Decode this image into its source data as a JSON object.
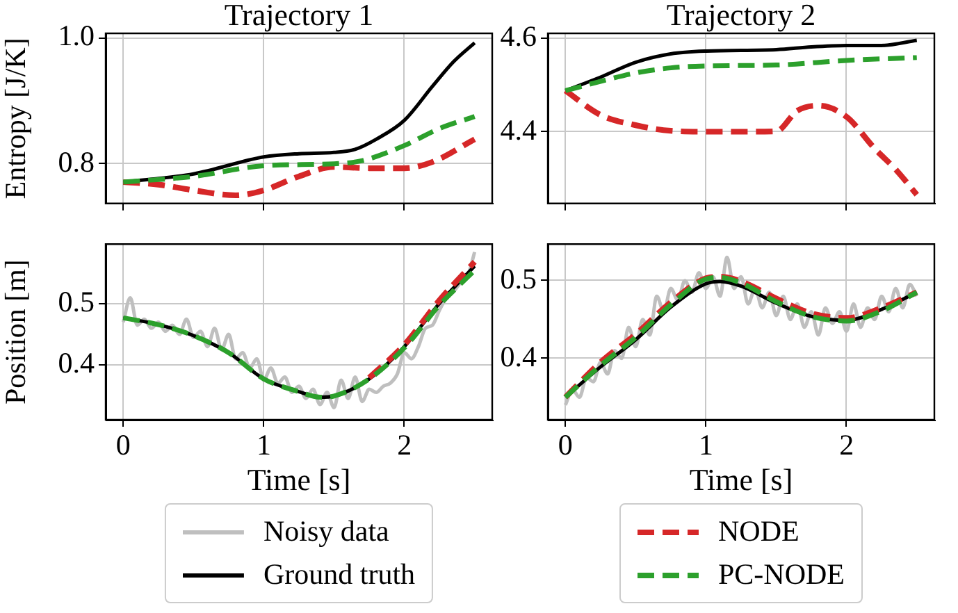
{
  "chart_data": [
    {
      "type": "line",
      "title": "Trajectory 1",
      "ylabel": "Entropy [J/K]",
      "xlim": [
        -0.125,
        2.625
      ],
      "ylim": [
        0.737,
        1.007
      ],
      "xticks": [
        0,
        1,
        2
      ],
      "yticks": [
        0.8,
        {
          "value": 1,
          "label": "1.0"
        }
      ],
      "grid": true,
      "tick_labels": "y",
      "marker": "none",
      "series": [
        {
          "color": "#000000",
          "line_style": "solid",
          "x": [
            0,
            0.5,
            1,
            1.25,
            1.5,
            1.65,
            1.8,
            2,
            2.2,
            2.35,
            2.5
          ],
          "values": [
            0.771,
            0.784,
            0.811,
            0.816,
            0.818,
            0.823,
            0.839,
            0.869,
            0.923,
            0.962,
            0.992
          ]
        },
        {
          "color": "#d62728",
          "line_style": "dashed",
          "x": [
            0,
            0.25,
            0.5,
            0.8,
            1,
            1.25,
            1.5,
            1.75,
            2,
            2.2,
            2.5
          ],
          "values": [
            0.771,
            0.767,
            0.758,
            0.75,
            0.758,
            0.78,
            0.795,
            0.793,
            0.793,
            0.803,
            0.839
          ]
        },
        {
          "color": "#2ca02c",
          "line_style": "dashed",
          "x": [
            0,
            0.5,
            1,
            1.5,
            1.7,
            2,
            2.25,
            2.5
          ],
          "values": [
            0.771,
            0.78,
            0.797,
            0.8,
            0.805,
            0.829,
            0.856,
            0.875
          ]
        }
      ]
    },
    {
      "type": "line",
      "title": "Trajectory 2",
      "xlim": [
        -0.125,
        2.625
      ],
      "ylim": [
        4.246,
        4.611
      ],
      "xticks": [
        0,
        1,
        2
      ],
      "yticks": [
        4.4,
        4.6
      ],
      "grid": true,
      "tick_labels": "y",
      "marker": "none",
      "series": [
        {
          "color": "#000000",
          "line_style": "solid",
          "x": [
            0,
            0.25,
            0.5,
            0.75,
            1,
            1.5,
            1.75,
            2,
            2.25,
            2.5
          ],
          "values": [
            4.488,
            4.517,
            4.549,
            4.567,
            4.573,
            4.576,
            4.582,
            4.585,
            4.585,
            4.596
          ]
        },
        {
          "color": "#d62728",
          "line_style": "dashed",
          "x": [
            0,
            0.25,
            0.5,
            0.75,
            1,
            1.25,
            1.5,
            1.65,
            1.8,
            2,
            2.2,
            2.35,
            2.5
          ],
          "values": [
            4.488,
            4.436,
            4.414,
            4.402,
            4.4,
            4.4,
            4.401,
            4.445,
            4.456,
            4.432,
            4.364,
            4.319,
            4.265
          ]
        },
        {
          "color": "#2ca02c",
          "line_style": "dashed",
          "x": [
            0,
            0.25,
            0.5,
            0.75,
            1,
            1.5,
            2,
            2.5
          ],
          "values": [
            4.488,
            4.508,
            4.526,
            4.537,
            4.541,
            4.543,
            4.553,
            4.559
          ]
        }
      ]
    },
    {
      "type": "line",
      "xlabel": "Time [s]",
      "ylabel": "Position [m]",
      "xlim": [
        -0.125,
        2.625
      ],
      "ylim": [
        0.31,
        0.598
      ],
      "xticks": [
        0,
        1,
        2
      ],
      "yticks": [
        0.4,
        0.5
      ],
      "grid": true,
      "legend": "bottom",
      "marker": "none",
      "series": [
        {
          "name": "Noisy data",
          "color": "#bfbfbf",
          "line_style": "solid",
          "x": [
            0,
            0.05,
            0.1,
            0.15,
            0.2,
            0.25,
            0.3,
            0.35,
            0.4,
            0.45,
            0.5,
            0.55,
            0.6,
            0.65,
            0.7,
            0.75,
            0.8,
            0.85,
            0.9,
            0.95,
            1,
            1.05,
            1.1,
            1.15,
            1.2,
            1.25,
            1.3,
            1.35,
            1.4,
            1.45,
            1.5,
            1.55,
            1.6,
            1.65,
            1.7,
            1.75,
            1.8,
            1.85,
            1.9,
            1.95,
            2,
            2.05,
            2.1,
            2.15,
            2.2,
            2.25,
            2.3,
            2.35,
            2.4,
            2.45,
            2.5
          ],
          "values": [
            0.47,
            0.51,
            0.465,
            0.475,
            0.46,
            0.47,
            0.455,
            0.465,
            0.45,
            0.475,
            0.445,
            0.455,
            0.43,
            0.46,
            0.425,
            0.45,
            0.41,
            0.42,
            0.395,
            0.41,
            0.375,
            0.395,
            0.37,
            0.38,
            0.355,
            0.365,
            0.345,
            0.36,
            0.335,
            0.355,
            0.33,
            0.375,
            0.345,
            0.38,
            0.34,
            0.36,
            0.355,
            0.365,
            0.37,
            0.385,
            0.42,
            0.41,
            0.43,
            0.46,
            0.465,
            0.49,
            0.51,
            0.52,
            0.535,
            0.545,
            0.585
          ]
        },
        {
          "name": "Ground truth",
          "color": "#000000",
          "line_style": "solid",
          "x": [
            0,
            0.25,
            0.5,
            0.75,
            1,
            1.25,
            1.4,
            1.5,
            1.75,
            2,
            2.25,
            2.5
          ],
          "values": [
            0.477,
            0.466,
            0.448,
            0.42,
            0.377,
            0.356,
            0.347,
            0.349,
            0.377,
            0.43,
            0.501,
            0.562
          ]
        },
        {
          "color": "#d62728",
          "line_style": "dashed",
          "x": [
            1.75,
            2,
            2.25,
            2.5
          ],
          "values": [
            0.379,
            0.433,
            0.506,
            0.569
          ]
        },
        {
          "color": "#2ca02c",
          "line_style": "dashed",
          "x": [
            0,
            0.25,
            0.5,
            0.75,
            1,
            1.25,
            1.4,
            1.5,
            1.75,
            2,
            2.25,
            2.5
          ],
          "values": [
            0.477,
            0.466,
            0.448,
            0.42,
            0.377,
            0.356,
            0.347,
            0.349,
            0.377,
            0.428,
            0.498,
            0.555
          ]
        }
      ]
    },
    {
      "type": "line",
      "xlabel": "Time [s]",
      "xlim": [
        -0.125,
        2.625
      ],
      "ylim": [
        0.321,
        0.547
      ],
      "xticks": [
        0,
        1,
        2
      ],
      "yticks": [
        0.4,
        0.5
      ],
      "grid": true,
      "legend": "bottom",
      "marker": "none",
      "series": [
        {
          "color": "#bfbfbf",
          "line_style": "solid",
          "x": [
            0,
            0.05,
            0.1,
            0.15,
            0.2,
            0.25,
            0.3,
            0.35,
            0.4,
            0.45,
            0.5,
            0.55,
            0.6,
            0.65,
            0.7,
            0.75,
            0.8,
            0.85,
            0.9,
            0.95,
            1,
            1.05,
            1.1,
            1.15,
            1.2,
            1.25,
            1.3,
            1.35,
            1.4,
            1.45,
            1.5,
            1.55,
            1.6,
            1.65,
            1.7,
            1.75,
            1.8,
            1.85,
            1.9,
            1.95,
            2,
            2.05,
            2.1,
            2.15,
            2.2,
            2.25,
            2.3,
            2.35,
            2.4,
            2.45,
            2.5
          ],
          "values": [
            0.34,
            0.36,
            0.35,
            0.375,
            0.37,
            0.395,
            0.38,
            0.41,
            0.4,
            0.44,
            0.415,
            0.45,
            0.43,
            0.48,
            0.46,
            0.49,
            0.475,
            0.5,
            0.485,
            0.51,
            0.49,
            0.505,
            0.48,
            0.53,
            0.49,
            0.505,
            0.47,
            0.49,
            0.465,
            0.485,
            0.455,
            0.48,
            0.45,
            0.47,
            0.44,
            0.46,
            0.43,
            0.465,
            0.445,
            0.46,
            0.435,
            0.47,
            0.44,
            0.465,
            0.45,
            0.48,
            0.46,
            0.49,
            0.465,
            0.495,
            0.48
          ]
        },
        {
          "color": "#000000",
          "line_style": "solid",
          "x": [
            0,
            0.25,
            0.5,
            0.75,
            1,
            1.1,
            1.25,
            1.5,
            1.75,
            2,
            2.25,
            2.5
          ],
          "values": [
            0.35,
            0.389,
            0.424,
            0.466,
            0.496,
            0.499,
            0.493,
            0.471,
            0.454,
            0.449,
            0.463,
            0.485
          ]
        },
        {
          "name": "NODE",
          "color": "#d62728",
          "line_style": "dashed",
          "x": [
            0,
            0.25,
            0.5,
            0.75,
            1,
            1.1,
            1.25,
            1.5,
            1.75,
            2,
            2.25,
            2.5
          ],
          "values": [
            0.35,
            0.395,
            0.431,
            0.472,
            0.503,
            0.505,
            0.499,
            0.477,
            0.458,
            0.452,
            0.465,
            0.485
          ]
        },
        {
          "name": "PC-NODE",
          "color": "#2ca02c",
          "line_style": "dashed",
          "x": [
            0,
            0.25,
            0.5,
            0.75,
            1,
            1.1,
            1.25,
            1.5,
            1.75,
            2,
            2.25,
            2.5
          ],
          "values": [
            0.35,
            0.391,
            0.427,
            0.469,
            0.502,
            0.504,
            0.497,
            0.473,
            0.454,
            0.448,
            0.461,
            0.485
          ]
        }
      ]
    }
  ]
}
